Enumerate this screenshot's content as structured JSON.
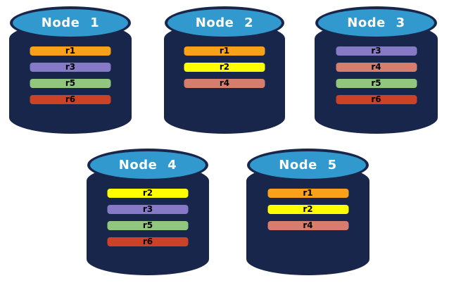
{
  "colors": {
    "cylinder_body": "#19264B",
    "cylinder_top": "#3299CE",
    "title_text": "#FFFFFF",
    "replica_label_text": "#000000",
    "replicas": {
      "r1": "#F9A11B",
      "r2": "#FFFF00",
      "r3": "#8679C5",
      "r4": "#D67D6E",
      "r5": "#90C67E",
      "r6": "#CB4226"
    }
  },
  "nodes": [
    {
      "title": "Node 1",
      "replicas": [
        {
          "id": "r1",
          "label": "r1"
        },
        {
          "id": "r3",
          "label": "r3"
        },
        {
          "id": "r5",
          "label": "r5"
        },
        {
          "id": "r6",
          "label": "r6"
        }
      ]
    },
    {
      "title": "Node 2",
      "replicas": [
        {
          "id": "r1",
          "label": "r1"
        },
        {
          "id": "r2",
          "label": "r2"
        },
        {
          "id": "r4",
          "label": "r4"
        }
      ]
    },
    {
      "title": "Node 3",
      "replicas": [
        {
          "id": "r3",
          "label": "r3"
        },
        {
          "id": "r4",
          "label": "r4"
        },
        {
          "id": "r5",
          "label": "r5"
        },
        {
          "id": "r6",
          "label": "r6"
        }
      ]
    },
    {
      "title": "Node 4",
      "replicas": [
        {
          "id": "r2",
          "label": "r2"
        },
        {
          "id": "r3",
          "label": "r3"
        },
        {
          "id": "r5",
          "label": "r5"
        },
        {
          "id": "r6",
          "label": "r6"
        }
      ]
    },
    {
      "title": "Node 5",
      "replicas": [
        {
          "id": "r1",
          "label": "r1"
        },
        {
          "id": "r2",
          "label": "r2"
        },
        {
          "id": "r4",
          "label": "r4"
        }
      ]
    }
  ]
}
